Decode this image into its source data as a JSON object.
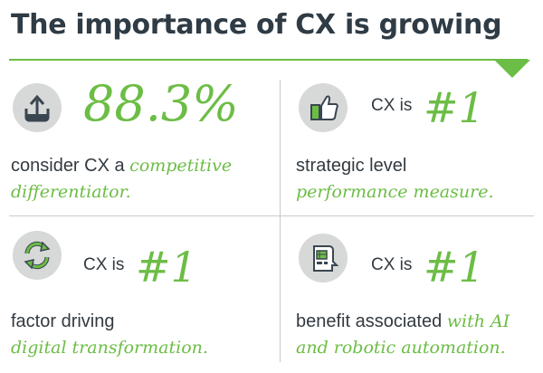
{
  "title": "The importance of CX is growing",
  "accent_color": "#6cbd45",
  "cells": [
    {
      "icon": "upload-icon",
      "stat": "88.3%",
      "line1_plain": "consider CX a ",
      "line1_em": "competitive",
      "line2": "differentiator."
    },
    {
      "icon": "thumbs-up-icon",
      "prefix": "CX is",
      "stat": "#1",
      "line1_plain": "strategic level",
      "line2": "performance measure."
    },
    {
      "icon": "refresh-icon",
      "prefix": "CX is",
      "stat": "#1",
      "line1_plain": "factor driving",
      "line2": "digital transformation."
    },
    {
      "icon": "robot-head-icon",
      "prefix": "CX is",
      "stat": "#1",
      "line1_plain": "benefit associated ",
      "line1_em": "with AI",
      "line2": "and robotic automation."
    }
  ]
}
